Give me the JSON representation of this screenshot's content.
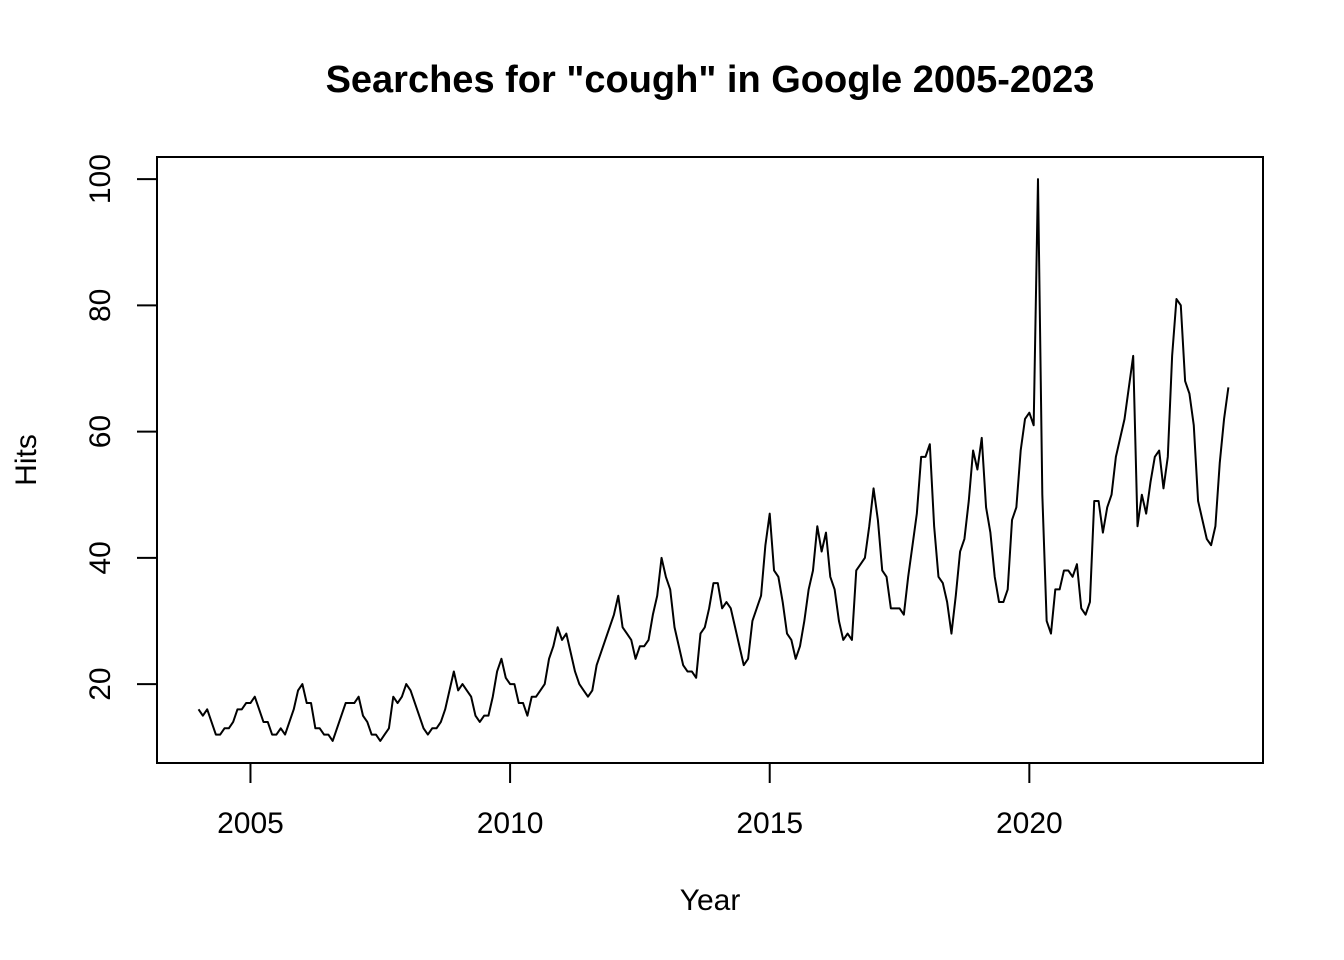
{
  "chart_data": {
    "type": "line",
    "title": "Searches for \"cough\" in Google 2005-2023",
    "xlabel": "Year",
    "ylabel": "Hits",
    "xlim": [
      2003.2,
      2024.5
    ],
    "ylim": [
      7.5,
      103.5
    ],
    "x_ticks": [
      2005,
      2010,
      2015,
      2020
    ],
    "y_ticks": [
      20,
      40,
      60,
      80,
      100
    ],
    "x_tick_labels": [
      "2005",
      "2010",
      "2015",
      "2020"
    ],
    "y_tick_labels": [
      "20",
      "40",
      "60",
      "80",
      "100"
    ],
    "grid": false,
    "legend": "none",
    "line_color": "#000000",
    "series": [
      {
        "x_start": 2004.0,
        "x_step": 0.08333333,
        "values": [
          16,
          15,
          16,
          14,
          12,
          12,
          13,
          13,
          14,
          16,
          16,
          17,
          17,
          18,
          16,
          14,
          14,
          12,
          12,
          13,
          12,
          14,
          16,
          19,
          20,
          17,
          17,
          13,
          13,
          12,
          12,
          11,
          13,
          15,
          17,
          17,
          17,
          18,
          15,
          14,
          12,
          12,
          11,
          12,
          13,
          18,
          17,
          18,
          20,
          19,
          17,
          15,
          13,
          12,
          13,
          13,
          14,
          16,
          19,
          22,
          19,
          20,
          19,
          18,
          15,
          14,
          15,
          15,
          18,
          22,
          24,
          21,
          20,
          20,
          17,
          17,
          15,
          18,
          18,
          19,
          20,
          24,
          26,
          29,
          27,
          28,
          25,
          22,
          20,
          19,
          18,
          19,
          23,
          25,
          27,
          29,
          31,
          34,
          29,
          28,
          27,
          24,
          26,
          26,
          27,
          31,
          34,
          40,
          37,
          35,
          29,
          26,
          23,
          22,
          22,
          21,
          28,
          29,
          32,
          36,
          36,
          32,
          33,
          32,
          29,
          26,
          23,
          24,
          30,
          32,
          34,
          42,
          47,
          38,
          37,
          33,
          28,
          27,
          24,
          26,
          30,
          35,
          38,
          45,
          41,
          44,
          37,
          35,
          30,
          27,
          28,
          27,
          38,
          39,
          40,
          45,
          51,
          46,
          38,
          37,
          32,
          32,
          32,
          31,
          37,
          42,
          47,
          56,
          56,
          58,
          45,
          37,
          36,
          33,
          28,
          34,
          41,
          43,
          49,
          57,
          54,
          59,
          48,
          44,
          37,
          33,
          33,
          35,
          46,
          48,
          57,
          62,
          63,
          61,
          100,
          50,
          30,
          28,
          35,
          35,
          38,
          38,
          37,
          39,
          32,
          31,
          33,
          49,
          49,
          44,
          48,
          50,
          56,
          59,
          62,
          67,
          72,
          45,
          50,
          47,
          52,
          56,
          57,
          51,
          56,
          72,
          81,
          80,
          68,
          66,
          61,
          49,
          46,
          43,
          42,
          45,
          55,
          62,
          67
        ]
      }
    ]
  }
}
